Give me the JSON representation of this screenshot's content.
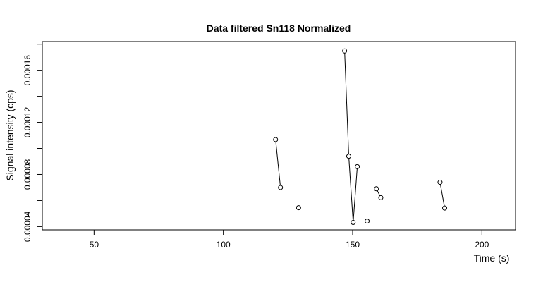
{
  "chart_data": {
    "type": "scatter",
    "title": "Data filtered Sn118 Normalized",
    "xlabel": "Time (s)",
    "ylabel": "Signal intensity (cps)",
    "xlim": [
      30,
      213
    ],
    "ylim": [
      3.75e-05,
      0.000182
    ],
    "x_ticks": [
      50,
      100,
      150,
      200
    ],
    "x_tick_labels": [
      "50",
      "100",
      "150",
      "200"
    ],
    "y_ticks": [
      4e-05,
      6e-05,
      8e-05,
      0.0001,
      0.00012,
      0.00014,
      0.00016,
      0.00018
    ],
    "y_tick_labels": [
      {
        "value": 4e-05,
        "text": "0.00004"
      },
      {
        "value": 8e-05,
        "text": "0.00008"
      },
      {
        "value": 0.00012,
        "text": "0.00012"
      },
      {
        "value": 0.00016,
        "text": "0.00016"
      }
    ],
    "segments": [
      [
        {
          "x": 120.2,
          "y": 0.0001068
        },
        {
          "x": 122.1,
          "y": 7e-05
        }
      ],
      [
        {
          "x": 129.1,
          "y": 5.45e-05
        }
      ],
      [
        {
          "x": 146.9,
          "y": 0.0001748
        },
        {
          "x": 148.5,
          "y": 9.4e-05
        },
        {
          "x": 150.2,
          "y": 4.32e-05
        },
        {
          "x": 151.8,
          "y": 8.6e-05
        }
      ],
      [
        {
          "x": 155.6,
          "y": 4.42e-05
        }
      ],
      [
        {
          "x": 159.2,
          "y": 6.9e-05
        },
        {
          "x": 160.9,
          "y": 6.22e-05
        }
      ],
      [
        {
          "x": 183.8,
          "y": 7.4e-05
        },
        {
          "x": 185.6,
          "y": 5.42e-05
        }
      ]
    ],
    "grid": false,
    "legend": "none"
  }
}
